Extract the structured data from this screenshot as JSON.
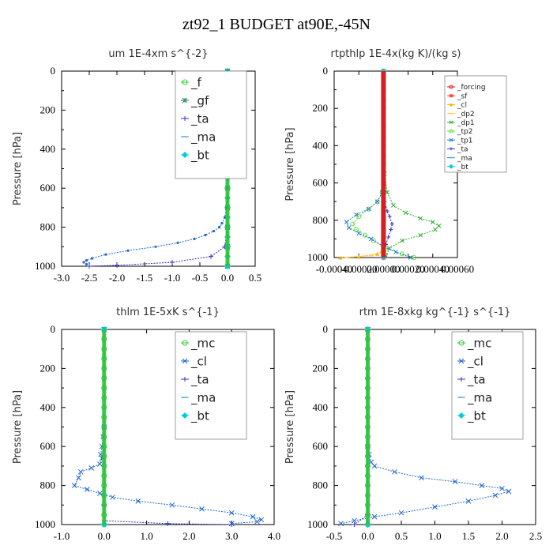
{
  "figure": {
    "title": "zt92_1  BUDGET at90E,-45N"
  },
  "chart_data": [
    {
      "type": "line",
      "title": "um   1E-4xm s^{-2}",
      "ylabel": "Pressure [hPa]",
      "xlim": [
        -3.0,
        0.5
      ],
      "ylim": [
        1000,
        0
      ],
      "xticks": [
        "-3.0",
        "-2.5",
        "-2.0",
        "-1.5",
        "-1.0",
        "-0.5",
        "0.0",
        "0.5"
      ],
      "yticks": [
        "0",
        "200",
        "400",
        "600",
        "800",
        "1000"
      ],
      "legend_position": "top-right",
      "legend_size": "large",
      "series": [
        {
          "name": "_f",
          "color": "#33cc33",
          "marker": "circle",
          "x": [
            0,
            0,
            0,
            0,
            0,
            0,
            0,
            0,
            0,
            0,
            0
          ],
          "y": [
            0,
            100,
            200,
            300,
            400,
            500,
            600,
            700,
            800,
            900,
            1000
          ]
        },
        {
          "name": "_gf",
          "color": "#2a8a6a",
          "marker": "star",
          "x": [
            0,
            0,
            0,
            0,
            0,
            0,
            0,
            0,
            0,
            0,
            0
          ],
          "y": [
            0,
            100,
            200,
            300,
            400,
            500,
            600,
            700,
            800,
            900,
            1000
          ]
        },
        {
          "name": "_ta",
          "color": "#3333cc",
          "marker": "plus",
          "x": [
            0,
            0,
            0,
            0,
            0,
            -0.05,
            -0.3,
            -1.0,
            -2.0,
            -2.5
          ],
          "y": [
            0,
            200,
            400,
            600,
            800,
            900,
            950,
            980,
            995,
            1000
          ]
        },
        {
          "name": "_ma",
          "color": "#3399dd",
          "marker": "dash",
          "x": [
            0,
            0,
            0,
            0,
            0,
            0,
            0,
            0,
            0,
            0,
            0
          ],
          "y": [
            0,
            100,
            200,
            300,
            400,
            500,
            600,
            700,
            800,
            900,
            1000
          ]
        },
        {
          "name": "_bt",
          "color": "#00ccdd",
          "marker": "diamond",
          "x": [
            0,
            0,
            0,
            0,
            0,
            0,
            0,
            0,
            0,
            0,
            0,
            0,
            0,
            0,
            0,
            0,
            0,
            0,
            0,
            0,
            0
          ],
          "y": [
            0,
            50,
            100,
            150,
            200,
            250,
            300,
            350,
            400,
            450,
            500,
            550,
            600,
            650,
            700,
            750,
            800,
            850,
            900,
            950,
            1000
          ]
        },
        {
          "name": "",
          "color": "#1f66d1",
          "marker": "dot",
          "x": [
            0,
            0,
            -0.02,
            -0.05,
            -0.1,
            -0.15,
            -0.25,
            -0.4,
            -0.6,
            -0.9,
            -1.3,
            -1.8,
            -2.2,
            -2.45,
            -2.55,
            -2.6,
            -2.55
          ],
          "y": [
            0,
            600,
            700,
            750,
            780,
            800,
            820,
            840,
            860,
            880,
            900,
            920,
            940,
            960,
            970,
            980,
            990
          ]
        }
      ]
    },
    {
      "type": "line",
      "title": "rtpthlp   1E-4x(kg K)/(kg s)",
      "ylabel": "Pressure [hPa]",
      "xlim": [
        -0.0004,
        0.0006
      ],
      "ylim": [
        1000,
        0
      ],
      "xticks": [
        "-0.00040",
        "-0.00020",
        "0.00000",
        "0.00020",
        "0.00040",
        "0.00060"
      ],
      "yticks": [
        "0",
        "200",
        "400",
        "600",
        "800",
        "1000"
      ],
      "legend_position": "top-right",
      "legend_size": "small",
      "series": [
        {
          "name": "_forcing",
          "color": "#e02020",
          "marker": "circle",
          "x": [
            0,
            0,
            0,
            0,
            0,
            0,
            0,
            0,
            0,
            0,
            0,
            0,
            0,
            0,
            0,
            0,
            0,
            0,
            0,
            0,
            0
          ],
          "y": [
            0,
            50,
            100,
            150,
            200,
            250,
            300,
            350,
            400,
            450,
            500,
            550,
            600,
            650,
            700,
            750,
            800,
            850,
            900,
            950,
            1000
          ]
        },
        {
          "name": "_sf",
          "color": "#ff3333",
          "marker": "star",
          "x": [
            0,
            0
          ],
          "y": [
            0,
            1000
          ]
        },
        {
          "name": "_cl",
          "color": "#ffaa00",
          "marker": "triangle",
          "x": [
            0,
            -5e-05,
            -0.0002,
            -0.00035
          ],
          "y": [
            960,
            980,
            995,
            1000
          ]
        },
        {
          "name": "_dp2",
          "color": "#ffcc33",
          "marker": "dash",
          "x": [
            0,
            -0.0001,
            -0.0003
          ],
          "y": [
            970,
            990,
            1000
          ]
        },
        {
          "name": "_dp1",
          "color": "#33aa33",
          "marker": "cross",
          "x": [
            0,
            1e-05,
            3e-05,
            8e-05,
            0.00018,
            0.0003,
            0.0004,
            0.00045,
            0.00042,
            0.0003,
            0.00015,
            5e-05,
            2e-05
          ],
          "y": [
            0,
            550,
            650,
            720,
            760,
            790,
            810,
            830,
            850,
            880,
            910,
            950,
            990
          ]
        },
        {
          "name": "_tp2",
          "color": "#66dd44",
          "marker": "circle",
          "x": [
            0,
            0,
            -1e-05,
            -5e-05,
            -0.00012,
            -0.0002,
            -0.00025,
            -0.00022,
            -0.00015,
            -8e-05,
            2e-05,
            0.00015,
            0.00025
          ],
          "y": [
            0,
            550,
            650,
            700,
            740,
            780,
            820,
            850,
            880,
            910,
            950,
            980,
            1000
          ]
        },
        {
          "name": "_tp1",
          "color": "#2277dd",
          "marker": "cross",
          "x": [
            0,
            -1e-05,
            -5e-05,
            -0.00012,
            -0.00022,
            -0.0003,
            -0.00028,
            -0.0002,
            -0.0001,
            0,
            0.0001,
            0.00022
          ],
          "y": [
            0,
            650,
            700,
            740,
            770,
            810,
            840,
            870,
            900,
            940,
            970,
            1000
          ]
        },
        {
          "name": "_ta",
          "color": "#3333cc",
          "marker": "plus",
          "x": [
            0,
            0,
            1e-05,
            3e-05,
            5e-05,
            7e-05,
            6e-05,
            4e-05,
            2e-05,
            0
          ],
          "y": [
            0,
            650,
            700,
            750,
            780,
            820,
            850,
            890,
            930,
            980
          ]
        },
        {
          "name": "_ma",
          "color": "#3399dd",
          "marker": "dash",
          "x": [
            0,
            0
          ],
          "y": [
            0,
            1000
          ]
        },
        {
          "name": "_bt",
          "color": "#00ccdd",
          "marker": "diamond",
          "x": [
            0,
            0
          ],
          "y": [
            0,
            1000
          ]
        }
      ]
    },
    {
      "type": "line",
      "title": "thlm   1E-5xK s^{-1}",
      "ylabel": "Pressure [hPa]",
      "xlim": [
        -1.0,
        4.0
      ],
      "ylim": [
        1000,
        0
      ],
      "xticks": [
        "-1.0",
        "0.0",
        "1.0",
        "2.0",
        "3.0",
        "4.0"
      ],
      "yticks": [
        "0",
        "200",
        "400",
        "600",
        "800",
        "1000"
      ],
      "legend_position": "top-right",
      "legend_size": "large",
      "series": [
        {
          "name": "_mc",
          "color": "#33cc33",
          "marker": "circle",
          "x": [
            0,
            0,
            0,
            0,
            0,
            0,
            0,
            0,
            0,
            0,
            0,
            0,
            0,
            0,
            0,
            0,
            0,
            0,
            0,
            0,
            0
          ],
          "y": [
            0,
            50,
            100,
            150,
            200,
            250,
            300,
            350,
            400,
            450,
            500,
            550,
            600,
            650,
            700,
            750,
            800,
            850,
            900,
            950,
            1000
          ]
        },
        {
          "name": "_cl",
          "color": "#1f66d1",
          "marker": "cross",
          "x": [
            0,
            0,
            -0.02,
            -0.05,
            -0.08,
            -0.05,
            -0.1,
            -0.3,
            -0.55,
            -0.6,
            -0.7,
            -0.4,
            -0.1,
            0.2,
            0.8,
            1.6,
            2.3,
            3.0,
            3.5,
            3.7,
            3.6,
            3.0
          ],
          "y": [
            0,
            500,
            550,
            600,
            640,
            660,
            690,
            710,
            730,
            760,
            800,
            820,
            840,
            860,
            880,
            900,
            920,
            940,
            960,
            975,
            985,
            995
          ]
        },
        {
          "name": "_ta",
          "color": "#3333cc",
          "marker": "plus",
          "x": [
            0,
            0,
            0,
            1.5,
            3.0
          ],
          "y": [
            0,
            900,
            980,
            995,
            1000
          ]
        },
        {
          "name": "_ma",
          "color": "#3399dd",
          "marker": "dash",
          "x": [
            0,
            0
          ],
          "y": [
            0,
            1000
          ]
        },
        {
          "name": "_bt",
          "color": "#00ccdd",
          "marker": "diamond",
          "x": [
            0,
            0
          ],
          "y": [
            0,
            1000
          ]
        }
      ]
    },
    {
      "type": "line",
      "title": "rtm   1E-8xkg kg^{-1} s^{-1}",
      "ylabel": "Pressure [hPa]",
      "xlim": [
        -0.5,
        2.5
      ],
      "ylim": [
        1000,
        0
      ],
      "xticks": [
        "-0.5",
        "0.0",
        "0.5",
        "1.0",
        "1.5",
        "2.0",
        "2.5"
      ],
      "yticks": [
        "0",
        "200",
        "400",
        "600",
        "800",
        "1000"
      ],
      "legend_position": "top-right",
      "legend_size": "large",
      "series": [
        {
          "name": "_mc",
          "color": "#33cc33",
          "marker": "circle",
          "x": [
            0,
            0,
            0,
            0,
            0,
            0,
            0,
            0,
            0,
            0,
            0,
            0,
            0,
            0,
            0,
            0,
            0,
            0,
            0,
            0,
            0
          ],
          "y": [
            0,
            50,
            100,
            150,
            200,
            250,
            300,
            350,
            400,
            450,
            500,
            550,
            600,
            650,
            700,
            750,
            800,
            850,
            900,
            950,
            1000
          ]
        },
        {
          "name": "_cl",
          "color": "#1f66d1",
          "marker": "cross",
          "x": [
            0,
            0,
            0.02,
            0.05,
            0.1,
            0.4,
            0.8,
            1.3,
            1.7,
            2.0,
            2.1,
            1.9,
            1.5,
            1.0,
            0.5,
            0.1,
            -0.2,
            -0.4
          ],
          "y": [
            0,
            600,
            640,
            680,
            700,
            730,
            760,
            780,
            800,
            815,
            830,
            850,
            880,
            910,
            940,
            960,
            980,
            995
          ]
        },
        {
          "name": "_ta",
          "color": "#3333cc",
          "marker": "plus",
          "x": [
            0,
            0,
            -0.2
          ],
          "y": [
            0,
            950,
            1000
          ]
        },
        {
          "name": "_ma",
          "color": "#3399dd",
          "marker": "dash",
          "x": [
            0,
            0
          ],
          "y": [
            0,
            1000
          ]
        },
        {
          "name": "_bt",
          "color": "#00ccdd",
          "marker": "diamond",
          "x": [
            0,
            0
          ],
          "y": [
            0,
            1000
          ]
        }
      ]
    }
  ]
}
